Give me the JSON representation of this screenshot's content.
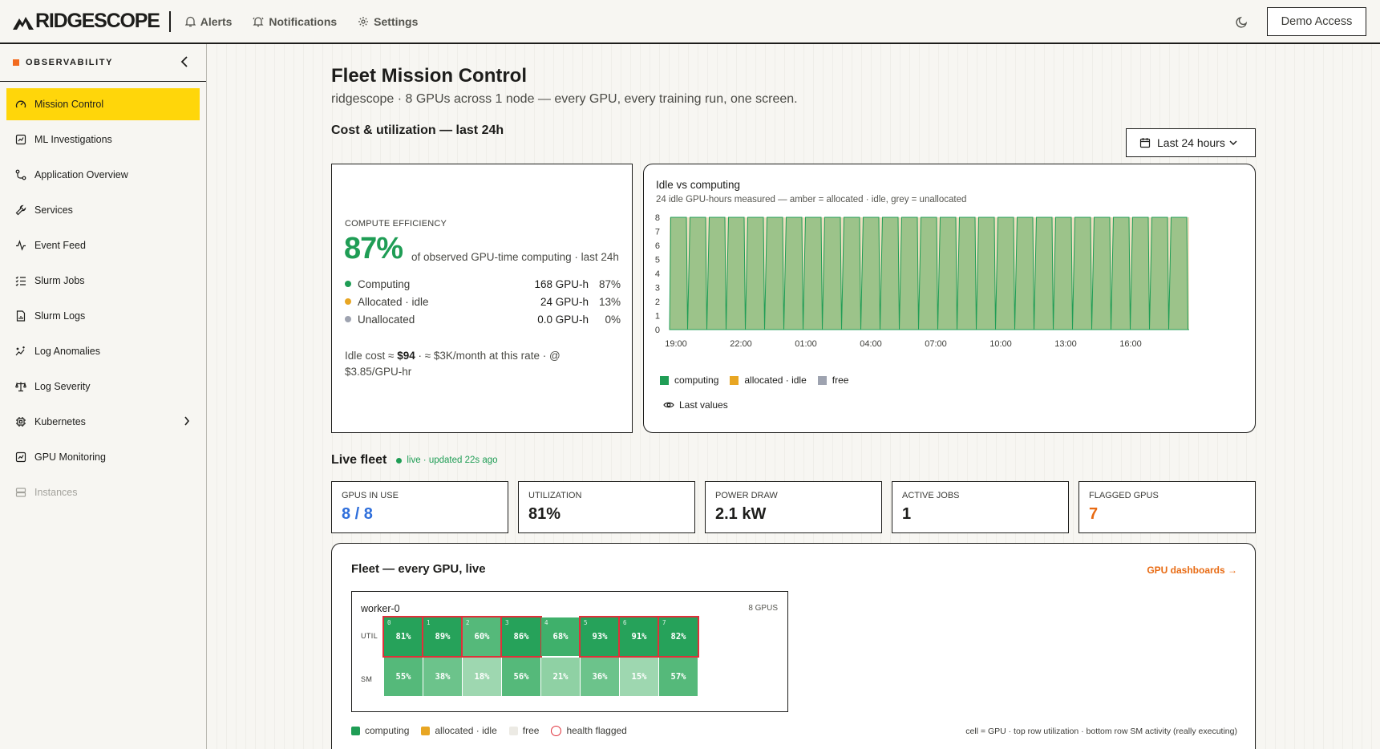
{
  "app": {
    "brand": "RIDGESCOPE",
    "nav": [
      {
        "label": "Alerts",
        "icon": "bell-icon"
      },
      {
        "label": "Notifications",
        "icon": "bell-ring-icon"
      },
      {
        "label": "Settings",
        "icon": "gear-icon"
      }
    ],
    "demo_button": "Demo Access"
  },
  "sidebar": {
    "title": "OBSERVABILITY",
    "items": [
      {
        "label": "Mission Control",
        "icon": "gauge-icon",
        "active": true
      },
      {
        "label": "ML Investigations",
        "icon": "chart-box-icon"
      },
      {
        "label": "Application Overview",
        "icon": "route-icon"
      },
      {
        "label": "Services",
        "icon": "wrench-icon"
      },
      {
        "label": "Event Feed",
        "icon": "activity-icon"
      },
      {
        "label": "Slurm Jobs",
        "icon": "list-check-icon"
      },
      {
        "label": "Slurm Logs",
        "icon": "file-chart-icon"
      },
      {
        "label": "Log Anomalies",
        "icon": "sparkle-chart-icon"
      },
      {
        "label": "Log Severity",
        "icon": "scale-icon"
      },
      {
        "label": "Kubernetes",
        "icon": "cpu-icon",
        "has_submenu": true
      },
      {
        "label": "GPU Monitoring",
        "icon": "chart-box-icon"
      },
      {
        "label": "Instances",
        "icon": "server-icon",
        "disabled": true
      }
    ]
  },
  "page": {
    "title": "Fleet Mission Control",
    "subtitle": "ridgescope · 8 GPUs across 1 node — every GPU, every training run, one screen."
  },
  "cost_section": {
    "title": "Cost & utilization — last 24h",
    "range_label": "Last 24 hours"
  },
  "efficiency": {
    "label": "COMPUTE EFFICIENCY",
    "value": "87%",
    "description": "of observed GPU-time computing · last 24h",
    "rows": [
      {
        "name": "Computing",
        "value": "168 GPU-h",
        "pct": "87%",
        "color": "#1f9d55"
      },
      {
        "name": "Allocated · idle",
        "value": "24 GPU-h",
        "pct": "13%",
        "color": "#e8a623"
      },
      {
        "name": "Unallocated",
        "value": "0.0 GPU-h",
        "pct": "0%",
        "color": "#9ea3b0"
      }
    ],
    "cost_prefix": "Idle cost ≈ ",
    "cost_value": "$94",
    "cost_suffix": " · ≈ $3K/month at this rate · @ $3.85/GPU-hr"
  },
  "idle_chart": {
    "title": "Idle vs computing",
    "subtitle": "24 idle GPU-hours measured — amber = allocated · idle, grey = unallocated",
    "legend": [
      {
        "label": "computing",
        "color": "#1f9d55"
      },
      {
        "label": "allocated · idle",
        "color": "#e8a623"
      },
      {
        "label": "free",
        "color": "#9ea3b0"
      }
    ],
    "last_values_label": "Last values"
  },
  "chart_data": {
    "type": "area",
    "title": "Idle vs computing",
    "x_ticks": [
      "19:00",
      "22:00",
      "01:00",
      "04:00",
      "07:00",
      "10:00",
      "13:00",
      "16:00"
    ],
    "y_ticks": [
      0,
      1,
      2,
      3,
      4,
      5,
      6,
      7,
      8
    ],
    "ylim": [
      0,
      8
    ],
    "series": [
      {
        "name": "computing",
        "color": "#1f9d55",
        "pattern": "approximately 8 GPUs computing throughout, with 27 brief dips to ~0 roughly every 50 minutes"
      },
      {
        "name": "allocated · idle",
        "color": "#e8a623",
        "pattern": "fills remainder to 8 during dips"
      },
      {
        "name": "free",
        "color": "#9ea3b0",
        "pattern": "0"
      }
    ],
    "dip_count": 27,
    "top_value": 8,
    "dip_value": 0
  },
  "live_fleet": {
    "title": "Live fleet",
    "status": "live · updated 22s ago",
    "kpis": [
      {
        "label": "GPUS IN USE",
        "value": "8 / 8",
        "color": "#2f6fdb"
      },
      {
        "label": "UTILIZATION",
        "value": "81%",
        "color": "#1d1d1b"
      },
      {
        "label": "POWER DRAW",
        "value": "2.1 kW",
        "color": "#1d1d1b"
      },
      {
        "label": "ACTIVE JOBS",
        "value": "1",
        "color": "#1d1d1b"
      },
      {
        "label": "FLAGGED GPUS",
        "value": "7",
        "color": "#e86a12"
      }
    ]
  },
  "fleet": {
    "title": "Fleet — every GPU, live",
    "link": "GPU dashboards →",
    "node": {
      "name": "worker-0",
      "count": "8 GPUS",
      "util_label": "UTIL",
      "sm_label": "SM",
      "gpus": [
        {
          "idx": "0",
          "util": "81%",
          "sm": "55%",
          "util_v": 81,
          "sm_v": 55,
          "flagged": true
        },
        {
          "idx": "1",
          "util": "89%",
          "sm": "38%",
          "util_v": 89,
          "sm_v": 38,
          "flagged": true
        },
        {
          "idx": "2",
          "util": "60%",
          "sm": "18%",
          "util_v": 60,
          "sm_v": 18,
          "flagged": true
        },
        {
          "idx": "3",
          "util": "86%",
          "sm": "56%",
          "util_v": 86,
          "sm_v": 56,
          "flagged": true
        },
        {
          "idx": "4",
          "util": "68%",
          "sm": "21%",
          "util_v": 68,
          "sm_v": 21,
          "flagged": false
        },
        {
          "idx": "5",
          "util": "93%",
          "sm": "36%",
          "util_v": 93,
          "sm_v": 36,
          "flagged": true
        },
        {
          "idx": "6",
          "util": "91%",
          "sm": "15%",
          "util_v": 91,
          "sm_v": 15,
          "flagged": true
        },
        {
          "idx": "7",
          "util": "82%",
          "sm": "57%",
          "util_v": 82,
          "sm_v": 57,
          "flagged": true
        }
      ]
    },
    "legend": [
      {
        "label": "computing",
        "type": "computing"
      },
      {
        "label": "allocated · idle",
        "type": "idle"
      },
      {
        "label": "free",
        "type": "free"
      },
      {
        "label": "health flagged",
        "type": "flagged"
      }
    ],
    "note": "cell = GPU · top row utilization · bottom row SM activity (really executing)"
  },
  "colors": {
    "accent": "#ffd60a",
    "computing": "#1f9d55",
    "idle": "#e8a623",
    "free": "#9ea3b0",
    "flag": "#e0303a",
    "link": "#e86a12"
  }
}
